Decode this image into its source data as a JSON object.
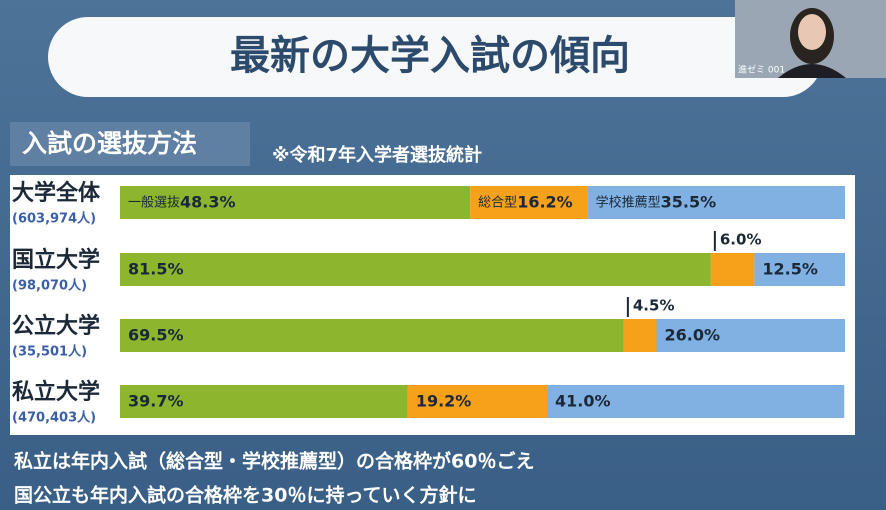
{
  "chart_data": {
    "type": "stacked-bar-horizontal",
    "title": "最新の大学入試の傾向",
    "section_label": "入試の選抜方法",
    "note": "※令和7年入学者選抜統計",
    "categories": [
      "大学全体",
      "国立大学",
      "公立大学",
      "私立大学"
    ],
    "category_sublabels": [
      "(603,974人)",
      "(98,070人)",
      "(35,501人)",
      "(470,403人)"
    ],
    "series": [
      {
        "name": "一般選抜",
        "color": "#8db52e",
        "values": [
          48.3,
          81.5,
          69.5,
          39.7
        ],
        "value_labels": [
          "48.3%",
          "81.5%",
          "69.5%",
          "39.7%"
        ]
      },
      {
        "name": "総合型",
        "color": "#f7a01a",
        "values": [
          16.2,
          6.0,
          4.5,
          19.2
        ],
        "value_labels": [
          "16.2%",
          "6.0%",
          "4.5%",
          "19.2%"
        ]
      },
      {
        "name": "学校推薦型",
        "color": "#80b1e2",
        "values": [
          35.5,
          12.5,
          26.0,
          41.0
        ],
        "value_labels": [
          "35.5%",
          "12.5%",
          "26.0%",
          "41.0%"
        ]
      }
    ],
    "xlim": [
      0,
      100
    ],
    "footer_lines": [
      "私立は年内入試（総合型・学校推薦型）の合格枠が60％ごえ",
      "国公立も年内入試の合格枠を30％に持っていく方針に"
    ],
    "webcam_label": "進ゼミ 001"
  }
}
